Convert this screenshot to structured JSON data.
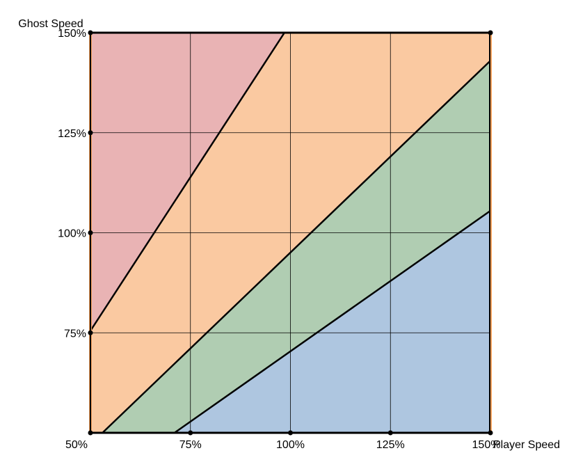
{
  "chart_data": {
    "type": "area",
    "xlabel": "Player Speed",
    "ylabel": "Ghost Speed",
    "xlim": [
      0.5,
      1.5
    ],
    "ylim": [
      0.5,
      1.5
    ],
    "x_ticks": [
      {
        "value": 0.5,
        "label": "50%"
      },
      {
        "value": 0.75,
        "label": "75%"
      },
      {
        "value": 1.0,
        "label": "100%"
      },
      {
        "value": 1.25,
        "label": "125%"
      },
      {
        "value": 1.5,
        "label": "150%"
      }
    ],
    "y_ticks": [
      {
        "value": 0.75,
        "label": "75%"
      },
      {
        "value": 1.0,
        "label": "100%"
      },
      {
        "value": 1.25,
        "label": "125%"
      },
      {
        "value": 1.5,
        "label": "150%"
      }
    ],
    "grid": true,
    "boundary_lines": [
      {
        "x": [
          0.5,
          0.985
        ],
        "y": [
          0.755,
          1.5
        ]
      },
      {
        "x": [
          0.53,
          1.5
        ],
        "y": [
          0.5,
          1.43
        ]
      },
      {
        "x": [
          0.71,
          1.5
        ],
        "y": [
          0.5,
          1.055
        ]
      }
    ],
    "regions": [
      {
        "color": "#e9b3b4",
        "polygon": [
          [
            0.5,
            0.755
          ],
          [
            0.985,
            1.5
          ],
          [
            0.5,
            1.5
          ]
        ]
      },
      {
        "color": "#fac9a1",
        "polygon": [
          [
            0.5,
            0.5
          ],
          [
            0.53,
            0.5
          ],
          [
            1.5,
            1.43
          ],
          [
            1.5,
            1.5
          ],
          [
            0.985,
            1.5
          ],
          [
            0.5,
            0.755
          ]
        ]
      },
      {
        "color": "#b0cdb2",
        "polygon": [
          [
            0.53,
            0.5
          ],
          [
            0.71,
            0.5
          ],
          [
            1.5,
            1.055
          ],
          [
            1.5,
            1.43
          ]
        ]
      },
      {
        "color": "#aec6e0",
        "polygon": [
          [
            0.71,
            0.5
          ],
          [
            1.5,
            0.5
          ],
          [
            1.5,
            1.055
          ]
        ]
      }
    ],
    "colors": {
      "left_edge": "#f5a05a",
      "right_edge": "#f5a05a"
    }
  }
}
